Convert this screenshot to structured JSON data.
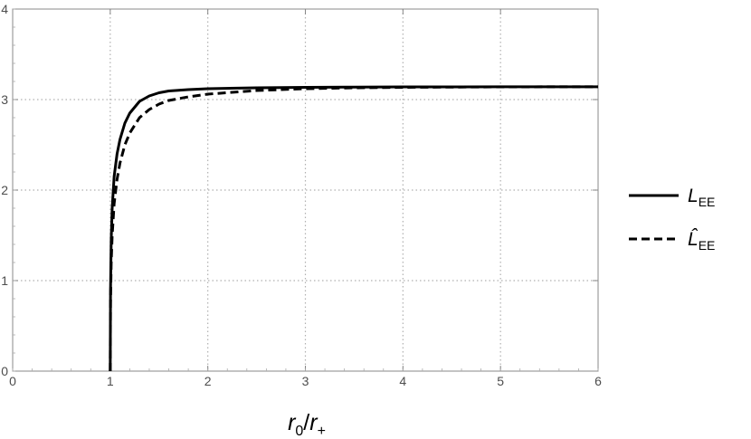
{
  "chart_data": {
    "type": "line",
    "title": "",
    "xlabel": "r0/r+",
    "xlabel_main": "r",
    "xlabel_sub": "0",
    "xlabel_sep": "/",
    "xlabel_main2": "r",
    "xlabel_sub2": "+",
    "ylabel": "",
    "xlim": [
      0,
      6
    ],
    "ylim": [
      0,
      4
    ],
    "xticks": [
      "0",
      "1",
      "2",
      "3",
      "4",
      "5",
      "6"
    ],
    "yticks": [
      "0",
      "1",
      "2",
      "3",
      "4"
    ],
    "grid": true,
    "legend_position": "right",
    "series": [
      {
        "name": "L_EE",
        "label_main": "L",
        "label_sub": "EE",
        "style": "solid",
        "x": [
          1.0,
          1.003,
          1.01,
          1.02,
          1.04,
          1.07,
          1.1,
          1.15,
          1.2,
          1.3,
          1.4,
          1.5,
          1.6,
          1.8,
          2.0,
          2.5,
          3.0,
          3.5,
          4.0,
          5.0,
          6.0
        ],
        "y": [
          0.0,
          0.9,
          1.45,
          1.8,
          2.15,
          2.4,
          2.56,
          2.74,
          2.85,
          2.98,
          3.04,
          3.075,
          3.095,
          3.11,
          3.12,
          3.13,
          3.135,
          3.138,
          3.14,
          3.141,
          3.1416
        ]
      },
      {
        "name": "ĉL_EE",
        "label_main": "L̂",
        "label_sub": "EE",
        "style": "dashed",
        "x": [
          1.0,
          1.003,
          1.01,
          1.02,
          1.04,
          1.07,
          1.1,
          1.15,
          1.2,
          1.3,
          1.4,
          1.5,
          1.6,
          1.8,
          2.0,
          2.5,
          3.0,
          3.5,
          4.0,
          5.0,
          6.0
        ],
        "y": [
          0.0,
          0.75,
          1.2,
          1.5,
          1.85,
          2.12,
          2.3,
          2.5,
          2.63,
          2.8,
          2.89,
          2.95,
          2.99,
          3.03,
          3.06,
          3.1,
          3.12,
          3.13,
          3.135,
          3.14,
          3.1416
        ]
      }
    ]
  }
}
